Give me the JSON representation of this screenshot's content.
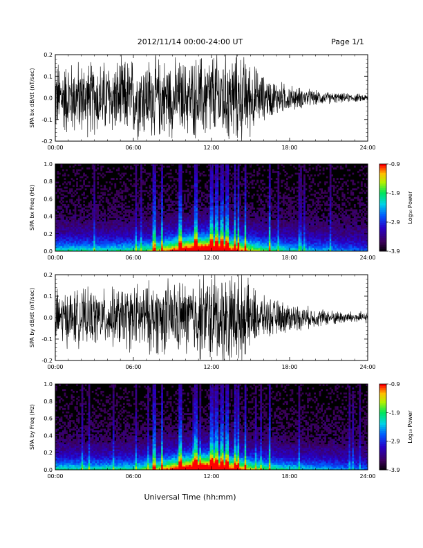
{
  "header": {
    "title": "2012/11/14  00:00-24:00 UT",
    "page": "Page 1/1"
  },
  "footer": {
    "xlabel": "Universal Time (hh:mm)"
  },
  "chart_data": [
    {
      "type": "line",
      "ylabel": "SPA bx dB/dt (nT/sec)",
      "xlim": [
        "00:00",
        "24:00"
      ],
      "ylim": [
        -0.2,
        0.2
      ],
      "x_ticks": [
        "00:00",
        "06:00",
        "12:00",
        "18:00",
        "24:00"
      ],
      "y_ticks": [
        "-0.2",
        "-0.1",
        "0.0",
        "0.1",
        "0.2"
      ],
      "color": "#000000",
      "envelope": {
        "hours": [
          0,
          2,
          4,
          6,
          8,
          10,
          12,
          14,
          15,
          16,
          18,
          20,
          22,
          24
        ],
        "amplitude": [
          0.2,
          0.2,
          0.2,
          0.22,
          0.22,
          0.2,
          0.25,
          0.25,
          0.2,
          0.12,
          0.07,
          0.04,
          0.025,
          0.02
        ]
      }
    },
    {
      "type": "heatmap",
      "ylabel": "SPA bx Freq (Hz)",
      "xlim": [
        "00:00",
        "24:00"
      ],
      "ylim": [
        0.0,
        1.0
      ],
      "x_ticks": [
        "00:00",
        "06:00",
        "12:00",
        "18:00",
        "24:00"
      ],
      "y_ticks": [
        "0.0",
        "0.2",
        "0.4",
        "0.6",
        "0.8",
        "1.0"
      ],
      "colorbar": {
        "label": "Log₁₀ Power",
        "min": -3.9,
        "max": -0.9,
        "ticks": [
          "-0.9",
          "-1.9",
          "-2.9",
          "-3.9"
        ]
      },
      "bright_bands_hours": [
        7.6,
        8.2,
        9.6,
        10.8,
        12.0,
        12.4,
        12.8,
        13.2,
        13.8,
        14.1,
        14.6,
        16.5
      ]
    },
    {
      "type": "line",
      "ylabel": "SPA by dB/dt (nT/sec)",
      "xlim": [
        "00:00",
        "24:00"
      ],
      "ylim": [
        -0.2,
        0.2
      ],
      "x_ticks": [
        "00:00",
        "06:00",
        "12:00",
        "18:00",
        "24:00"
      ],
      "y_ticks": [
        "-0.2",
        "-0.1",
        "0.0",
        "0.1",
        "0.2"
      ],
      "color": "#000000",
      "envelope": {
        "hours": [
          0,
          2,
          4,
          6,
          8,
          10,
          12,
          14,
          15,
          16,
          18,
          20,
          22,
          24
        ],
        "amplitude": [
          0.15,
          0.15,
          0.15,
          0.18,
          0.2,
          0.2,
          0.25,
          0.25,
          0.18,
          0.11,
          0.08,
          0.05,
          0.035,
          0.03
        ]
      }
    },
    {
      "type": "heatmap",
      "ylabel": "SPA by Freq (Hz)",
      "xlim": [
        "00:00",
        "24:00"
      ],
      "ylim": [
        0.0,
        1.0
      ],
      "x_ticks": [
        "00:00",
        "06:00",
        "12:00",
        "18:00",
        "24:00"
      ],
      "y_ticks": [
        "0.0",
        "0.2",
        "0.4",
        "0.6",
        "0.8",
        "1.0"
      ],
      "colorbar": {
        "label": "Log₁₀ Power",
        "min": -3.9,
        "max": -0.9,
        "ticks": [
          "-0.9",
          "-1.9",
          "-2.9",
          "-3.9"
        ]
      },
      "bright_bands_hours": [
        7.6,
        8.2,
        9.6,
        10.8,
        12.0,
        12.4,
        12.8,
        13.2,
        13.8,
        14.1,
        14.6,
        16.5
      ]
    }
  ]
}
